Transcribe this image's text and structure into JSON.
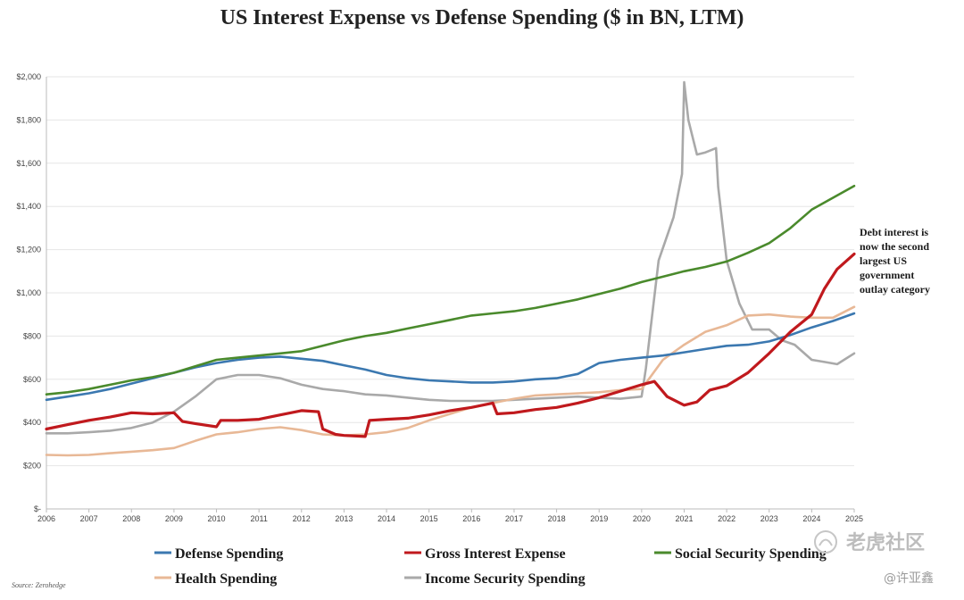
{
  "chart_data": {
    "type": "line",
    "title": "US Interest Expense vs Defense Spending ($ in BN, LTM)",
    "xlabel": "",
    "ylabel": "",
    "xlim": [
      2006,
      2025
    ],
    "ylim": [
      0,
      2000
    ],
    "x_ticks": [
      "2006",
      "2007",
      "2008",
      "2009",
      "2010",
      "2011",
      "2012",
      "2013",
      "2014",
      "2015",
      "2016",
      "2017",
      "2018",
      "2019",
      "2020",
      "2021",
      "2022",
      "2023",
      "2024",
      "2025"
    ],
    "x_tick_values": [
      2006,
      2007,
      2008,
      2009,
      2010,
      2011,
      2012,
      2013,
      2014,
      2015,
      2016,
      2017,
      2018,
      2019,
      2020,
      2021,
      2022,
      2023,
      2024,
      2025
    ],
    "y_ticks": [
      "$-",
      "$200",
      "$400",
      "$600",
      "$800",
      "$1,000",
      "$1,200",
      "$1,400",
      "$1,600",
      "$1,800",
      "$2,000"
    ],
    "y_tick_values": [
      0,
      200,
      400,
      600,
      800,
      1000,
      1200,
      1400,
      1600,
      1800,
      2000
    ],
    "grid": true,
    "legend_position": "bottom",
    "series": [
      {
        "name": "Defense Spending",
        "color": "#3b78b0",
        "x": [
          2006,
          2006.5,
          2007,
          2007.5,
          2008,
          2008.5,
          2009,
          2009.5,
          2010,
          2010.5,
          2011,
          2011.5,
          2012,
          2012.5,
          2013,
          2013.5,
          2014,
          2014.5,
          2015,
          2015.5,
          2016,
          2016.5,
          2017,
          2017.5,
          2018,
          2018.5,
          2019,
          2019.5,
          2020,
          2020.5,
          2021,
          2021.5,
          2022,
          2022.5,
          2023,
          2023.5,
          2024,
          2024.5,
          2025
        ],
        "values": [
          505,
          520,
          535,
          555,
          580,
          605,
          630,
          655,
          675,
          690,
          700,
          705,
          695,
          685,
          665,
          645,
          620,
          605,
          595,
          590,
          585,
          585,
          590,
          600,
          605,
          625,
          675,
          690,
          700,
          710,
          725,
          740,
          755,
          760,
          775,
          805,
          840,
          870,
          905
        ]
      },
      {
        "name": "Gross Interest Expense",
        "color": "#c0191d",
        "x": [
          2006,
          2006.5,
          2007,
          2007.5,
          2008,
          2008.5,
          2009,
          2009.2,
          2009.5,
          2010,
          2010.1,
          2010.5,
          2011,
          2011.5,
          2012,
          2012.4,
          2012.5,
          2012.8,
          2013,
          2013.5,
          2013.6,
          2014,
          2014.5,
          2015,
          2015.5,
          2016,
          2016.5,
          2016.6,
          2017,
          2017.5,
          2018,
          2018.5,
          2019,
          2019.5,
          2020,
          2020.3,
          2020.6,
          2021,
          2021.3,
          2021.6,
          2022,
          2022.5,
          2023,
          2023.5,
          2024,
          2024.3,
          2024.6,
          2025
        ],
        "values": [
          370,
          390,
          410,
          425,
          445,
          440,
          445,
          405,
          395,
          380,
          410,
          410,
          415,
          435,
          455,
          450,
          370,
          345,
          340,
          335,
          410,
          415,
          420,
          435,
          455,
          470,
          490,
          440,
          445,
          460,
          470,
          490,
          515,
          545,
          575,
          590,
          520,
          480,
          495,
          550,
          570,
          630,
          720,
          820,
          900,
          1020,
          1110,
          1180
        ]
      },
      {
        "name": "Social Security Spending",
        "color": "#4a8a2c",
        "x": [
          2006,
          2006.5,
          2007,
          2007.5,
          2008,
          2008.5,
          2009,
          2009.5,
          2010,
          2010.5,
          2011,
          2011.5,
          2012,
          2012.5,
          2013,
          2013.5,
          2014,
          2014.5,
          2015,
          2015.5,
          2016,
          2016.5,
          2017,
          2017.5,
          2018,
          2018.5,
          2019,
          2019.5,
          2020,
          2020.5,
          2021,
          2021.5,
          2022,
          2022.5,
          2023,
          2023.5,
          2024,
          2024.5,
          2025
        ],
        "values": [
          530,
          540,
          555,
          575,
          595,
          610,
          630,
          660,
          690,
          700,
          710,
          720,
          730,
          755,
          780,
          800,
          815,
          835,
          855,
          875,
          895,
          905,
          915,
          930,
          950,
          970,
          995,
          1020,
          1050,
          1075,
          1100,
          1120,
          1145,
          1185,
          1230,
          1300,
          1385,
          1440,
          1495
        ]
      },
      {
        "name": "Health Spending",
        "color": "#e8b896",
        "x": [
          2006,
          2006.5,
          2007,
          2007.5,
          2008,
          2008.5,
          2009,
          2009.5,
          2010,
          2010.5,
          2011,
          2011.5,
          2012,
          2012.5,
          2013,
          2013.5,
          2014,
          2014.5,
          2015,
          2015.5,
          2016,
          2016.5,
          2017,
          2017.5,
          2018,
          2018.5,
          2019,
          2019.5,
          2020,
          2020.5,
          2021,
          2021.5,
          2022,
          2022.5,
          2023,
          2023.5,
          2024,
          2024.5,
          2025
        ],
        "values": [
          250,
          248,
          250,
          258,
          265,
          272,
          282,
          315,
          345,
          355,
          370,
          378,
          365,
          345,
          340,
          345,
          355,
          375,
          410,
          440,
          470,
          490,
          510,
          525,
          530,
          535,
          540,
          550,
          555,
          690,
          760,
          820,
          850,
          895,
          900,
          890,
          885,
          885,
          935
        ]
      },
      {
        "name": "Income Security Spending",
        "color": "#a9a9a9",
        "x": [
          2006,
          2006.5,
          2007,
          2007.5,
          2008,
          2008.5,
          2009,
          2009.5,
          2010,
          2010.5,
          2011,
          2011.5,
          2012,
          2012.5,
          2013,
          2013.5,
          2014,
          2014.5,
          2015,
          2015.5,
          2016,
          2016.5,
          2017,
          2017.5,
          2018,
          2018.5,
          2019,
          2019.5,
          2020,
          2020.1,
          2020.4,
          2020.75,
          2020.95,
          2021.0,
          2021.1,
          2021.3,
          2021.5,
          2021.75,
          2021.8,
          2022,
          2022.3,
          2022.6,
          2023,
          2023.3,
          2023.6,
          2024,
          2024.3,
          2024.6,
          2025
        ],
        "values": [
          350,
          350,
          355,
          362,
          375,
          400,
          450,
          520,
          600,
          620,
          620,
          605,
          575,
          555,
          545,
          530,
          525,
          515,
          505,
          500,
          500,
          500,
          505,
          510,
          515,
          520,
          515,
          510,
          520,
          650,
          1150,
          1350,
          1550,
          1975,
          1800,
          1640,
          1650,
          1670,
          1490,
          1150,
          950,
          830,
          830,
          780,
          760,
          690,
          680,
          670,
          720
        ]
      }
    ],
    "annotation": "Debt interest is now the second largest US government outlay category",
    "annotation_lines": [
      "Debt interest is",
      "now the second",
      "largest US",
      "government",
      "outlay category"
    ],
    "source": "Source: Zerohedge"
  },
  "watermark": {
    "brand": "老虎社区",
    "handle": "@许亚鑫"
  }
}
